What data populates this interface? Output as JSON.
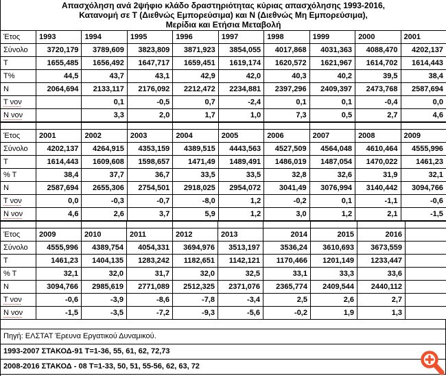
{
  "title": {
    "line1": "Απασχόληση ανά 2ψήφιο κλάδο δραστηριότητας κύριας απασχόλησης 1993-2016,",
    "line2": "Κατανομή σε Τ (Διεθνώς Εμπορεύσιμα) και Ν (Διεθνώς Μη Εμπορεύσιμα),",
    "line3": "Μερίδια και Ετήσια Μεταβολή"
  },
  "blocks": [
    {
      "label_header": "Έτος",
      "separator_before": false,
      "years": [
        "1993",
        "1994",
        "1995",
        "1996",
        "1997",
        "1998",
        "1999",
        "2000",
        "2001"
      ],
      "year_align": [
        "l",
        "l",
        "l",
        "l",
        "l",
        "l",
        "l",
        "l",
        "l"
      ],
      "rows": [
        {
          "key": "synolo",
          "label": "Σύνολο",
          "values": [
            "3720,179",
            "3789,609",
            "3823,809",
            "3871,923",
            "3854,055",
            "4017,868",
            "4031,363",
            "4088,470",
            "4202,137"
          ]
        },
        {
          "key": "t",
          "label": "Τ",
          "values": [
            "1655,485",
            "1656,492",
            "1647,717",
            "1659,451",
            "1619,174",
            "1620,572",
            "1621,967",
            "1614,702",
            "1614,443"
          ]
        },
        {
          "key": "t-pct",
          "label": "Τ%",
          "values": [
            "44,5",
            "43,7",
            "43,1",
            "42,9",
            "42,0",
            "40,3",
            "40,2",
            "39,5",
            "38,4"
          ]
        },
        {
          "key": "n",
          "label": "Ν",
          "values": [
            "2064,694",
            "2133,117",
            "2176,092",
            "2212,472",
            "2234,881",
            "2397,296",
            "2409,397",
            "2473,768",
            "2587,694"
          ]
        },
        {
          "key": "t-yoy",
          "label": "Τ νον",
          "squiggle": true,
          "values": [
            "",
            "0,1",
            "-0,5",
            "0,7",
            "-2,4",
            "0,1",
            "0,1",
            "-0,4",
            "0,0"
          ]
        },
        {
          "key": "n-yoy",
          "label": "Ν νον",
          "squiggle": true,
          "values": [
            "",
            "3,3",
            "2,0",
            "1,7",
            "1,0",
            "7,3",
            "0,5",
            "2,7",
            "4,6"
          ]
        }
      ]
    },
    {
      "label_header": "Έτος",
      "separator_before": true,
      "years": [
        "2001",
        "2002",
        "2003",
        "2004",
        "2005",
        "2006",
        "2007",
        "2008",
        "2009"
      ],
      "year_align": [
        "l",
        "l",
        "l",
        "l",
        "l",
        "l",
        "l",
        "l",
        "l"
      ],
      "rows": [
        {
          "key": "synolo",
          "label": "Σύνολο",
          "values": [
            "4202,137",
            "4264,915",
            "4353,159",
            "4389,515",
            "4443,563",
            "4527,509",
            "4564,048",
            "4610,464",
            "4555,996"
          ]
        },
        {
          "key": "t",
          "label": "Τ",
          "values": [
            "1614,443",
            "1609,608",
            "1598,657",
            "1471,49",
            "1489,491",
            "1486,019",
            "1487,054",
            "1470,022",
            "1461,23"
          ]
        },
        {
          "key": "t-pct",
          "label": "% Τ",
          "values": [
            "38,4",
            "37,7",
            "36,7",
            "33,5",
            "33,5",
            "32,8",
            "32,6",
            "31,9",
            "32,1"
          ]
        },
        {
          "key": "n",
          "label": "Ν",
          "values": [
            "2587,694",
            "2655,306",
            "2754,501",
            "2918,025",
            "2954,072",
            "3041,49",
            "3076,994",
            "3140,442",
            "3094,766"
          ]
        },
        {
          "key": "t-yoy",
          "label": "Τ νον",
          "squiggle": true,
          "values": [
            "0,0",
            "-0,3",
            "-0,7",
            "-8,0",
            "1,2",
            "-0,2",
            "0,1",
            "-1,1",
            "-0,6"
          ]
        },
        {
          "key": "n-yoy",
          "label": "Ν νον",
          "squiggle": true,
          "values": [
            "4,6",
            "2,6",
            "3,7",
            "5,9",
            "1,2",
            "3,0",
            "1,2",
            "2,1",
            "-1,5"
          ]
        }
      ]
    },
    {
      "label_header": "Έτος",
      "separator_before": true,
      "years": [
        "2009",
        "2010",
        "2011",
        "2012",
        "2013",
        "2014",
        "2015",
        "2016",
        ""
      ],
      "year_align": [
        "l",
        "l",
        "l",
        "l",
        "l",
        "r",
        "r",
        "r",
        "l"
      ],
      "rows": [
        {
          "key": "synolo",
          "label": "Σύνολο",
          "values": [
            "4555,996",
            "4389,754",
            "4054,331",
            "3694,976",
            "3513,197",
            "3536,24",
            "3610,693",
            "3673,559",
            ""
          ]
        },
        {
          "key": "t",
          "label": "Τ",
          "values": [
            "1461,23",
            "1404,135",
            "1283,242",
            "1182,651",
            "1142,121",
            "1170,466",
            "1201,149",
            "1233,447",
            ""
          ]
        },
        {
          "key": "t-pct",
          "label": "% Τ",
          "values": [
            "32,1",
            "32,0",
            "31,7",
            "32,0",
            "32,5",
            "33,1",
            "33,3",
            "33,6",
            ""
          ]
        },
        {
          "key": "n",
          "label": "Ν",
          "values": [
            "3094,766",
            "2985,619",
            "2771,089",
            "2512,325",
            "2371,076",
            "2365,774",
            "2409,544",
            "2440,112",
            ""
          ]
        },
        {
          "key": "t-yoy",
          "label": "Τ νον",
          "squiggle": true,
          "values": [
            "-0,6",
            "-3,9",
            "-8,6",
            "-7,8",
            "-3,4",
            "2,5",
            "2,6",
            "2,7",
            ""
          ]
        },
        {
          "key": "n-yoy",
          "label": "Ν νον",
          "squiggle": true,
          "values": [
            "-1,5",
            "-3,5",
            "-7,2",
            "-9,3",
            "-5,6",
            "-0,2",
            "1,9",
            "1,3",
            ""
          ]
        }
      ]
    }
  ],
  "notes": [
    "Πηγή:  ΕΛΣΤΑΤ Έρευνα Εργατικού Δυναμικού.",
    "1993-2007 ΣΤΑΚΟΔ-91  Τ=1-36, 55, 61, 62, 72,73",
    "2008-2016 ΣΤΑΚΟΔ - 08  Τ=1-33, 50, 51, 55-56, 62, 63, 72"
  ],
  "icons": {
    "zoom": "zoom-in-magnifier-plus"
  },
  "colors": {
    "border": "#000000",
    "background": "#ffffff",
    "text": "#000000",
    "zoom_icon": "#f0512a",
    "spellcheck_squiggle": "#e03a2f"
  }
}
